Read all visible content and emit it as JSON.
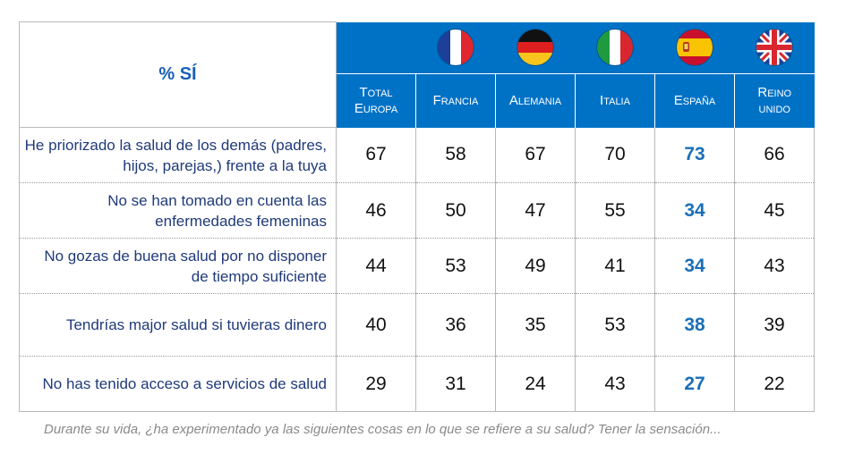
{
  "table": {
    "corner_label": "% SÍ",
    "columns": [
      {
        "label_line1": "Total",
        "label_line2": "Europa",
        "flag": "",
        "flag_icon": "none",
        "highlight": false
      },
      {
        "label_line1": "Francia",
        "label_line2": "",
        "flag": "france",
        "flag_icon": "france-flag-icon",
        "highlight": false
      },
      {
        "label_line1": "Alemania",
        "label_line2": "",
        "flag": "germany",
        "flag_icon": "germany-flag-icon",
        "highlight": false
      },
      {
        "label_line1": "Italia",
        "label_line2": "",
        "flag": "italy",
        "flag_icon": "italy-flag-icon",
        "highlight": false
      },
      {
        "label_line1": "España",
        "label_line2": "",
        "flag": "spain",
        "flag_icon": "spain-flag-icon",
        "highlight": true
      },
      {
        "label_line1": "Reino",
        "label_line2": "unido",
        "flag": "uk",
        "flag_icon": "uk-flag-icon",
        "highlight": false
      }
    ],
    "rows": [
      {
        "label_line1": "He priorizado la salud de los demás (padres,",
        "label_line2": "hijos, parejas,) frente a la tuya",
        "values": [
          67,
          58,
          67,
          70,
          73,
          66
        ]
      },
      {
        "label_line1": "No se han tomado en cuenta las",
        "label_line2": "enfermedades femeninas",
        "values": [
          46,
          50,
          47,
          55,
          34,
          45
        ]
      },
      {
        "label_line1": "No gozas de buena salud por no disponer",
        "label_line2": "de tiempo suficiente",
        "values": [
          44,
          53,
          49,
          41,
          34,
          43
        ]
      },
      {
        "label_line1": "Tendrías major salud si tuvieras dinero",
        "label_line2": "",
        "values": [
          40,
          36,
          35,
          53,
          38,
          39
        ]
      },
      {
        "label_line1": "No has tenido acceso a servicios de salud",
        "label_line2": "",
        "values": [
          29,
          31,
          24,
          43,
          27,
          22
        ]
      }
    ]
  },
  "caption": "Durante su vida, ¿ha experimentado ya las siguientes cosas en lo que se refiere a su salud? Tener la sensación...",
  "colors": {
    "header_blue": "#0072c6",
    "highlight_blue": "#1a6fb8",
    "label_navy": "#1f3a7a",
    "corner_blue": "#1a5fb4"
  },
  "chart_data": {
    "type": "table",
    "title": "% SÍ",
    "categories": [
      "Total Europa",
      "Francia",
      "Alemania",
      "Italia",
      "España",
      "Reino unido"
    ],
    "series": [
      {
        "name": "He priorizado la salud de los demás (padres, hijos, parejas,) frente a la tuya",
        "values": [
          67,
          58,
          67,
          70,
          73,
          66
        ]
      },
      {
        "name": "No se han tomado en cuenta las enfermedades femeninas",
        "values": [
          46,
          50,
          47,
          55,
          34,
          45
        ]
      },
      {
        "name": "No gozas de buena salud por no disponer de tiempo suficiente",
        "values": [
          44,
          53,
          49,
          41,
          34,
          43
        ]
      },
      {
        "name": "Tendrías major salud si tuvieras dinero",
        "values": [
          40,
          36,
          35,
          53,
          38,
          39
        ]
      },
      {
        "name": "No has tenido acceso a servicios de salud",
        "values": [
          29,
          31,
          24,
          43,
          27,
          22
        ]
      }
    ],
    "highlighted_category": "España"
  }
}
